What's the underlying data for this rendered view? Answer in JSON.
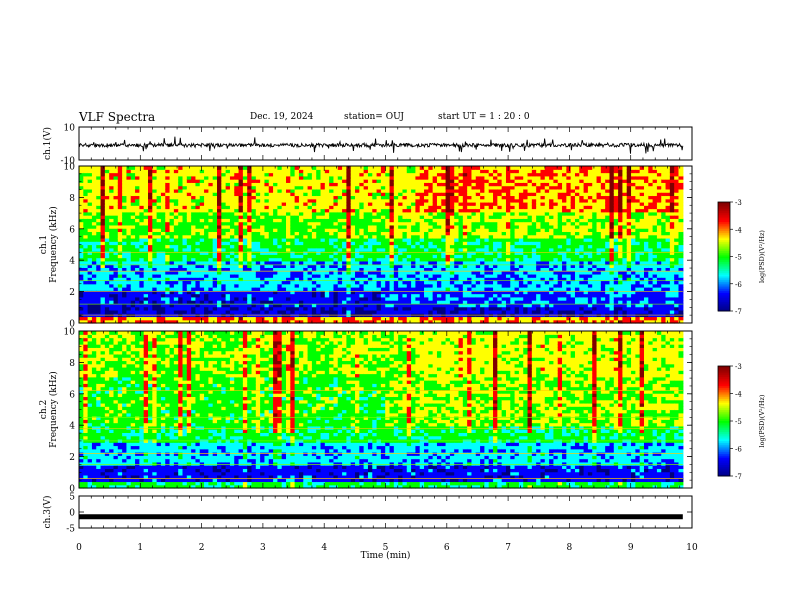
{
  "header": {
    "title": "VLF Spectra",
    "date": "Dec. 19, 2024",
    "station": "station= OUJ",
    "start": "start  UT =   1 : 20 : 0"
  },
  "colors": {
    "jet": [
      "#00007f",
      "#0000ff",
      "#00ffff",
      "#00ff00",
      "#ffff00",
      "#ff0000",
      "#7f0000"
    ]
  },
  "chart_data": [
    {
      "type": "line",
      "ylabel": "ch.1(V)",
      "ylim": [
        -10,
        10
      ],
      "yticks": [
        "10",
        "-10"
      ],
      "xlim": [
        0,
        10
      ],
      "description_values": {
        "x": [
          0,
          9.85
        ],
        "y": [
          -1,
          -1
        ]
      }
    },
    {
      "type": "heatmap",
      "ylabel": "ch.1\nFrequency (kHz)",
      "ylim": [
        0,
        10
      ],
      "yticks": [
        "0",
        "2",
        "4",
        "6",
        "8",
        "10"
      ],
      "xlim": [
        0,
        10
      ],
      "data_extent_min": 9.85,
      "colorbar": {
        "label": "log(PSD)(V²/Hz)",
        "range": [
          -7,
          -3
        ],
        "ticks": [
          "-3",
          "-4",
          "-5",
          "-6",
          "-7"
        ]
      }
    },
    {
      "type": "heatmap",
      "ylabel": "ch.2\nFrequency (kHz)",
      "ylim": [
        0,
        10
      ],
      "yticks": [
        "0",
        "2",
        "4",
        "6",
        "8",
        "10"
      ],
      "xlim": [
        0,
        10
      ],
      "data_extent_min": 9.85,
      "colorbar": {
        "label": "log(PSD)(V²/Hz)",
        "range": [
          -7,
          -3
        ],
        "ticks": [
          "-3",
          "-4",
          "-5",
          "-6",
          "-7"
        ]
      }
    },
    {
      "type": "line",
      "ylabel": "ch.3(V)",
      "ylim": [
        -5,
        5
      ],
      "yticks": [
        "5",
        "0",
        "-5"
      ],
      "xlim": [
        0,
        10
      ],
      "description_values": {
        "x": [
          0,
          9.85
        ],
        "y": [
          -1.5,
          -1.5
        ]
      }
    }
  ],
  "xaxis": {
    "label": "Time (min)",
    "ticks": [
      "0",
      "1",
      "2",
      "3",
      "4",
      "5",
      "6",
      "7",
      "8",
      "9",
      "10"
    ]
  }
}
